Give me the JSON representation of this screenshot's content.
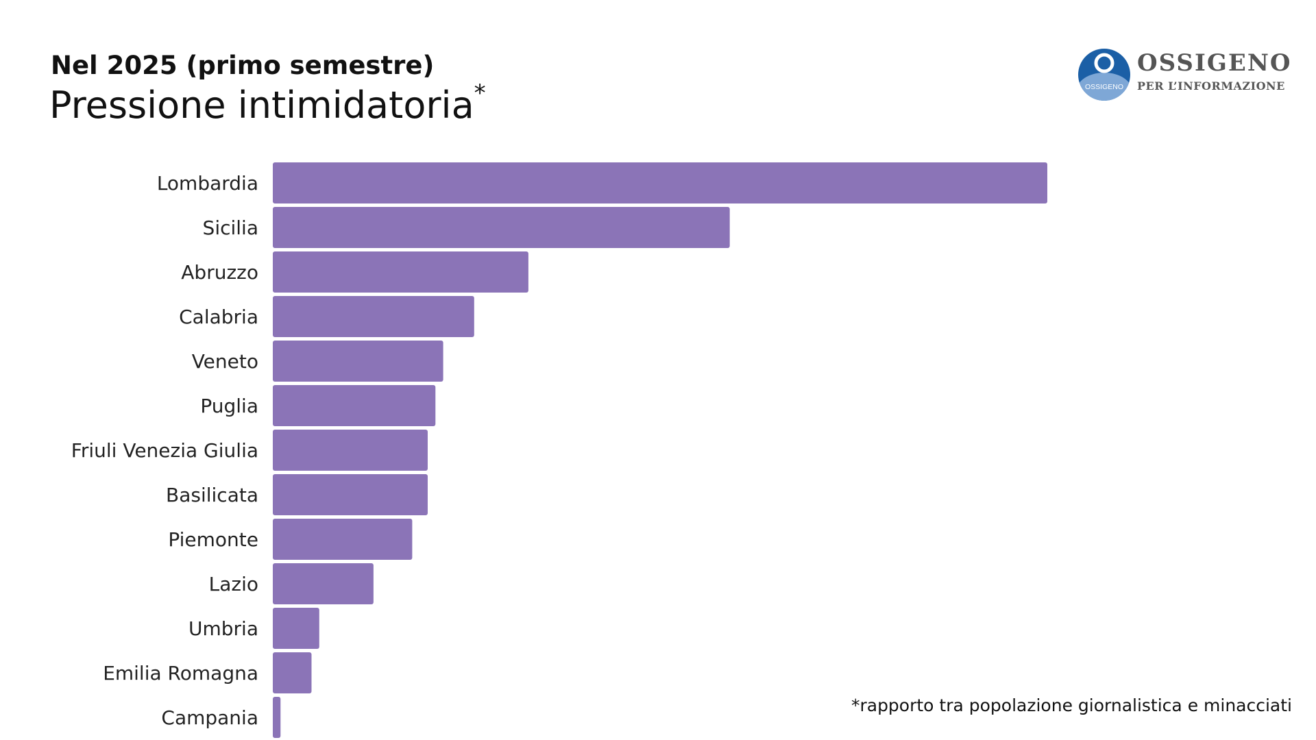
{
  "header": {
    "subtitle": "Nel 2025 (primo semestre)",
    "title": "Pressione intimidatoria",
    "title_marker": "*"
  },
  "logo": {
    "name": "OSSIGENO",
    "tagline": "PER L’INFORMAZIONE",
    "badge_text": "OSSIGENO",
    "colors": {
      "badge_dark": "#1b5fa6",
      "badge_light": "#7ea7d6",
      "text": "#555555"
    }
  },
  "footnote": "*rapporto tra popolazione giornalistica e minacciati",
  "chart_data": {
    "type": "bar",
    "orientation": "horizontal",
    "title": "Pressione intimidatoria",
    "subtitle": "Nel 2025 (primo semestre)",
    "xlabel": "",
    "ylabel": "",
    "grid": false,
    "bar_color": "#8b74b7",
    "xlim": [
      0,
      100
    ],
    "categories": [
      "Lombardia",
      "Sicilia",
      "Abruzzo",
      "Calabria",
      "Veneto",
      "Puglia",
      "Friuli Venezia Giulia",
      "Basilicata",
      "Piemonte",
      "Lazio",
      "Umbria",
      "Emilia Romagna",
      "Campania"
    ],
    "values": [
      100,
      59,
      33,
      26,
      22,
      21,
      20,
      20,
      18,
      13,
      6,
      5,
      1
    ]
  }
}
